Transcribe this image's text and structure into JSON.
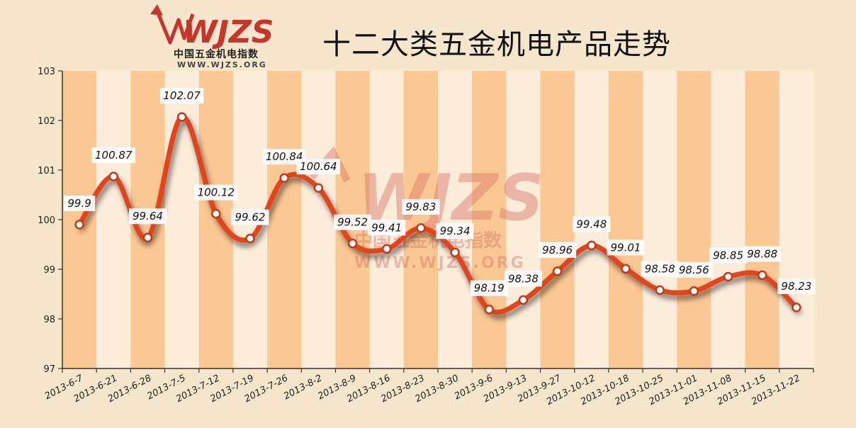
{
  "chart_data": {
    "type": "line",
    "title": "十二大类五金机电产品走势",
    "xlabel": "",
    "ylabel": "",
    "ylim": [
      97,
      103
    ],
    "yticks": [
      97,
      98,
      99,
      100,
      101,
      102,
      103
    ],
    "categories": [
      "2013-6-7",
      "2013-6-21",
      "2013-6-28",
      "2013-7-5",
      "2013-7-12",
      "2013-7-19",
      "2013-7-26",
      "2013-8-2",
      "2013-8-9",
      "2013-8-16",
      "2013-8-23",
      "2013-8-30",
      "2013-9-6",
      "2013-9-13",
      "2013-9-27",
      "2013-10-12",
      "2013-10-18",
      "2013-10-25",
      "2013-11-01",
      "2013-11-08",
      "2013-11-15",
      "2013-11-22"
    ],
    "values": [
      99.9,
      100.87,
      99.64,
      102.07,
      100.12,
      99.62,
      100.84,
      100.64,
      99.52,
      99.41,
      99.83,
      99.34,
      98.19,
      98.38,
      98.96,
      99.48,
      99.01,
      98.58,
      98.56,
      98.85,
      98.88,
      98.23
    ],
    "data_labels": [
      "99.9",
      "100.87",
      "99.64",
      "102.07",
      "100.12",
      "99.62",
      "100.84",
      "100.64",
      "99.52",
      "99.41",
      "99.83",
      "99.34",
      "98.19",
      "98.38",
      "98.96",
      "99.48",
      "99.01",
      "98.58",
      "98.56",
      "98.85",
      "98.88",
      "98.23"
    ],
    "grid": false,
    "colors": {
      "line": "#e2451b",
      "band_dark": "#fbc792",
      "band_light": "#fcecda",
      "background": "#f6e7cc",
      "watermark": "#d9776a"
    }
  },
  "logo": {
    "mark": "WJZS",
    "subtitle": "中国五金机电指数",
    "url": "WWW.WJZS.ORG"
  }
}
